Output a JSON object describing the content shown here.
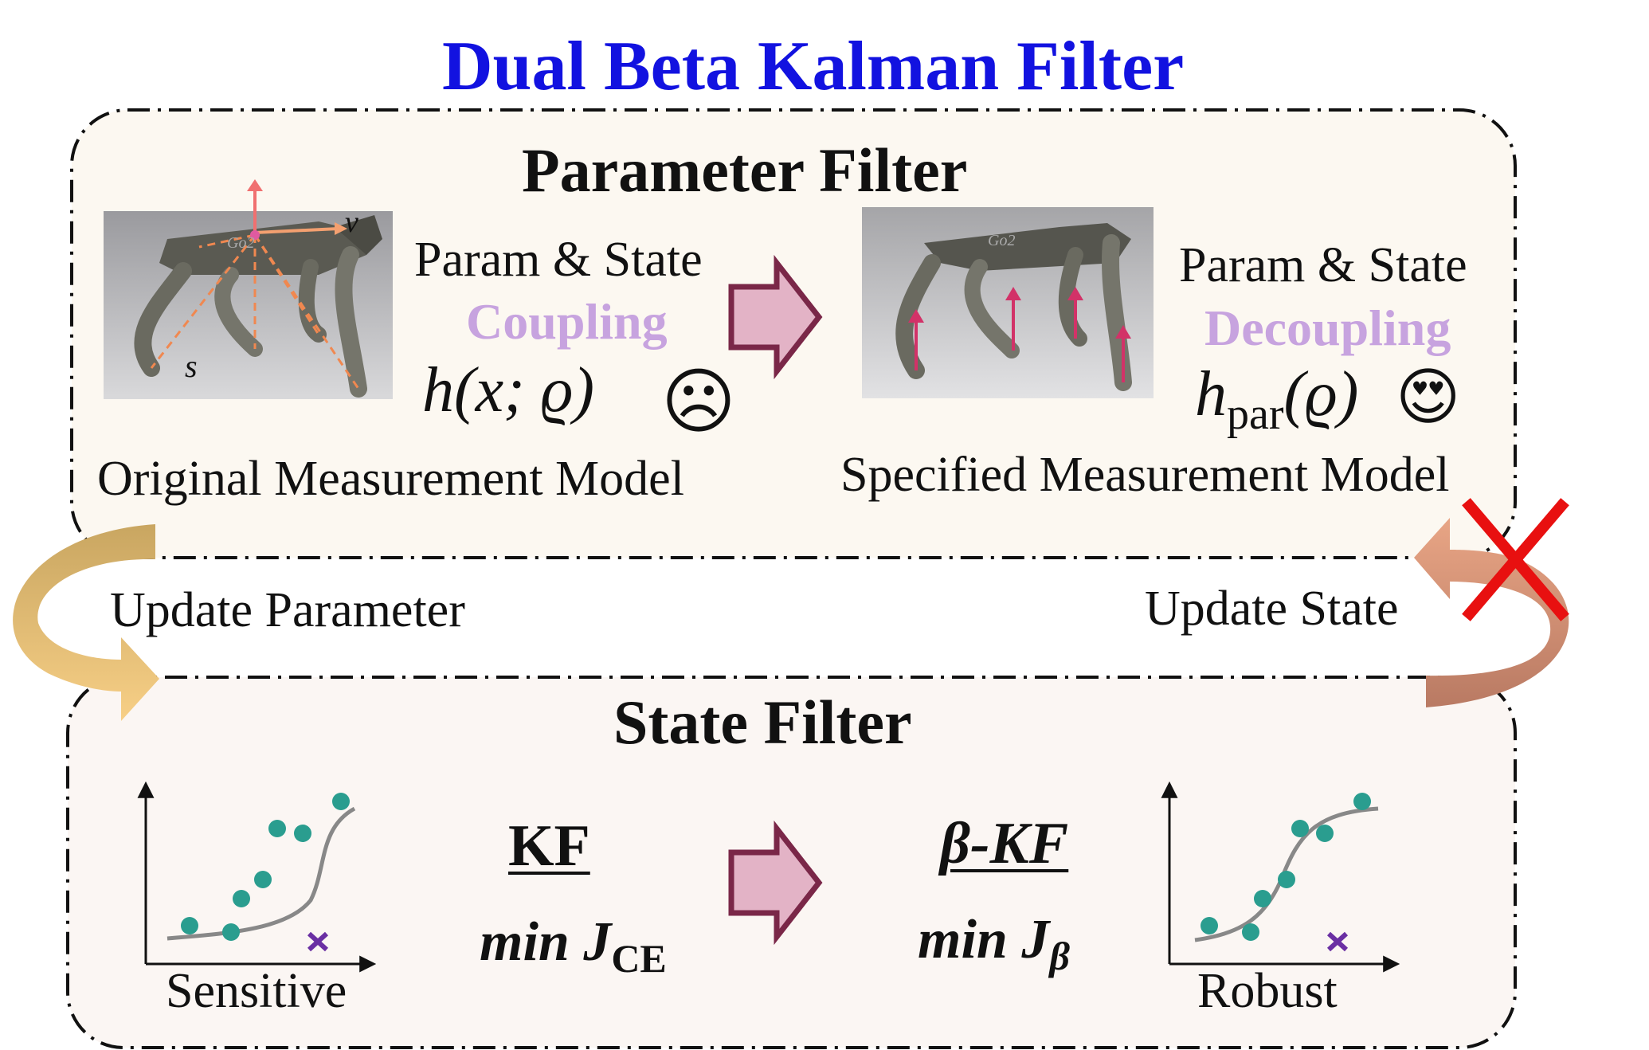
{
  "title": "Dual Beta Kalman Filter",
  "parameter_filter": {
    "heading": "Parameter Filter",
    "left": {
      "coupling_line1": "Param & State",
      "coupling_line2": "Coupling",
      "formula": "h(x; ϱ)",
      "face": "☹",
      "caption": "Original Measurement Model",
      "photo_labels": {
        "v": "v",
        "s": "s",
        "robot_mark": "Go2"
      }
    },
    "right": {
      "coupling_line1": "Param & State",
      "coupling_line2": "Decoupling",
      "formula_base": "h",
      "formula_sub": "par",
      "formula_arg": "(ϱ)",
      "face": "😍",
      "caption": "Specified Measurement Model",
      "photo_labels": {
        "robot_mark": "Go2"
      }
    }
  },
  "state_filter": {
    "heading": "State Filter",
    "left_plot_label": "Sensitive",
    "right_plot_label": "Robust",
    "kf_label": "KF",
    "kf_objective": "min J",
    "kf_objective_sub": "CE",
    "bkf_label": "β-KF",
    "bkf_objective": "min J",
    "bkf_objective_sub": "β"
  },
  "links": {
    "update_parameter": "Update Parameter",
    "update_state": "Update State",
    "blocked_mark": "✗"
  },
  "colors": {
    "title": "#1212e0",
    "emphasis": "#c7a3df",
    "big_arrow_fill": "#e3b3c6",
    "big_arrow_stroke": "#7a2748",
    "panel_fill": "#fcf8f1",
    "state_panel_fill": "#fbf6f3",
    "dots": "#2a9d8f",
    "outlier": "#6a2fa3",
    "cross": "#e81010",
    "left_curve": "#e9c77c",
    "right_curve": "#c98a6f"
  }
}
